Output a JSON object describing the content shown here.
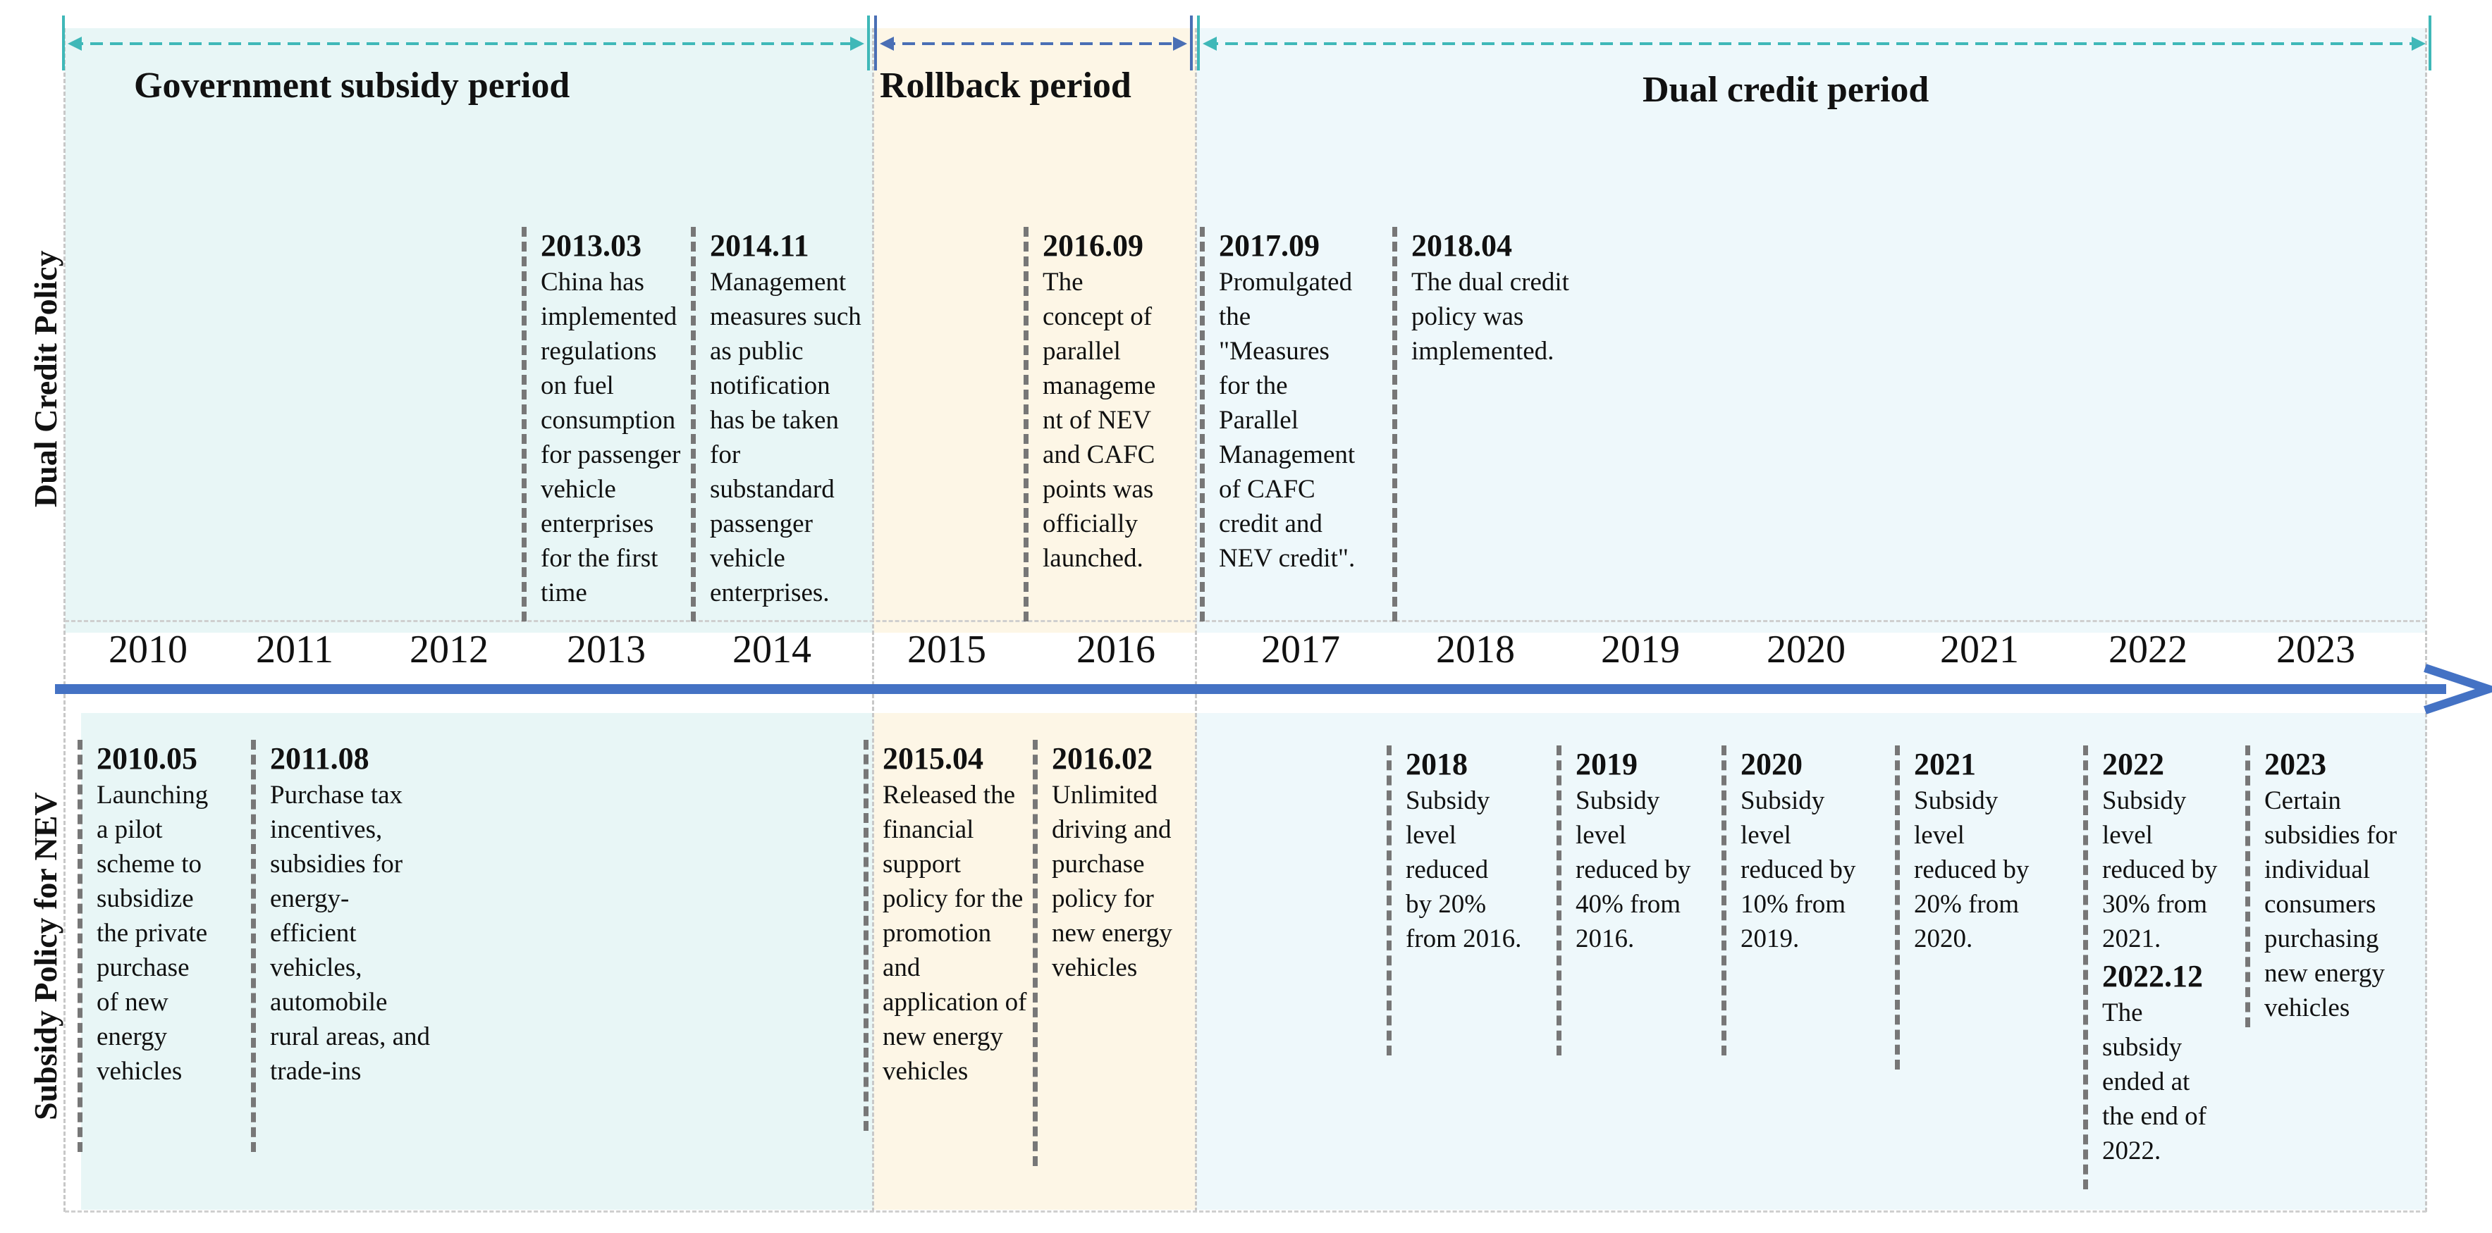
{
  "periods": {
    "subsidy": "Government subsidy period",
    "rollback": "Rollback period",
    "dual": "Dual credit period"
  },
  "rows": {
    "top": "Dual Credit Policy",
    "bottom": "Subsidy Policy for NEV"
  },
  "years": [
    "2010",
    "2011",
    "2012",
    "2013",
    "2014",
    "2015",
    "2016",
    "2017",
    "2018",
    "2019",
    "2020",
    "2021",
    "2022",
    "2023"
  ],
  "top_events": [
    {
      "date": "2013.03",
      "desc": "China has\nimplemented\nregulations\non fuel\nconsumption\nfor passenger\nvehicle\nenterprises\nfor the first\ntime"
    },
    {
      "date": "2014.11",
      "desc": "Management\nmeasures such\nas public\nnotification\nhas be taken\nfor\nsubstandard\npassenger\nvehicle\nenterprises."
    },
    {
      "date": "2016.09",
      "desc": "The\nconcept of\nparallel\nmanageme\nnt of NEV\nand CAFC\npoints was\nofficially\nlaunched."
    },
    {
      "date": "2017.09",
      "desc": "Promulgated\nthe\n\"Measures\nfor the\nParallel\nManagement\nof CAFC\ncredit and\nNEV credit\"."
    },
    {
      "date": "2018.04",
      "desc": "The dual credit\npolicy was\nimplemented."
    }
  ],
  "bottom_events": [
    {
      "date": "2010.05",
      "desc": "Launching\na pilot\nscheme to\nsubsidize\nthe private\npurchase\nof new\nenergy\nvehicles"
    },
    {
      "date": "2011.08",
      "desc": "Purchase tax\nincentives,\nsubsidies for\nenergy-\nefficient\nvehicles,\nautomobile\nrural areas, and\ntrade-ins"
    },
    {
      "date": "2015.04",
      "desc": "Released the\nfinancial\nsupport\npolicy for the\npromotion\nand\napplication of\nnew energy\nvehicles"
    },
    {
      "date": "2016.02",
      "desc": "Unlimited\ndriving and\npurchase\npolicy for\nnew energy\nvehicles"
    },
    {
      "date": "2018",
      "desc": "Subsidy\nlevel\nreduced\nby 20%\nfrom 2016."
    },
    {
      "date": "2019",
      "desc": "Subsidy\nlevel\nreduced by\n40% from\n2016."
    },
    {
      "date": "2020",
      "desc": "Subsidy\nlevel\nreduced by\n10% from\n2019."
    },
    {
      "date": "2021",
      "desc": "Subsidy\nlevel\nreduced by\n20% from\n2020."
    },
    {
      "date": "2022",
      "desc": "Subsidy\nlevel\nreduced by\n30% from\n2021.",
      "date2": "2022.12",
      "desc2": "The\nsubsidy\nended at\nthe end of\n2022."
    },
    {
      "date": "2023",
      "desc": "Certain\nsubsidies for\nindividual\nconsumers\npurchasing\nnew energy\nvehicles"
    }
  ],
  "colors": {
    "subsidy_bg": "#e8f6f6",
    "rollback_bg": "#fdf6e6",
    "dual_bg": "#eef8fb",
    "arrow": "#4472c4",
    "bracket_teal": "#3fb8b8",
    "bracket_blue": "#4a6fb5"
  }
}
